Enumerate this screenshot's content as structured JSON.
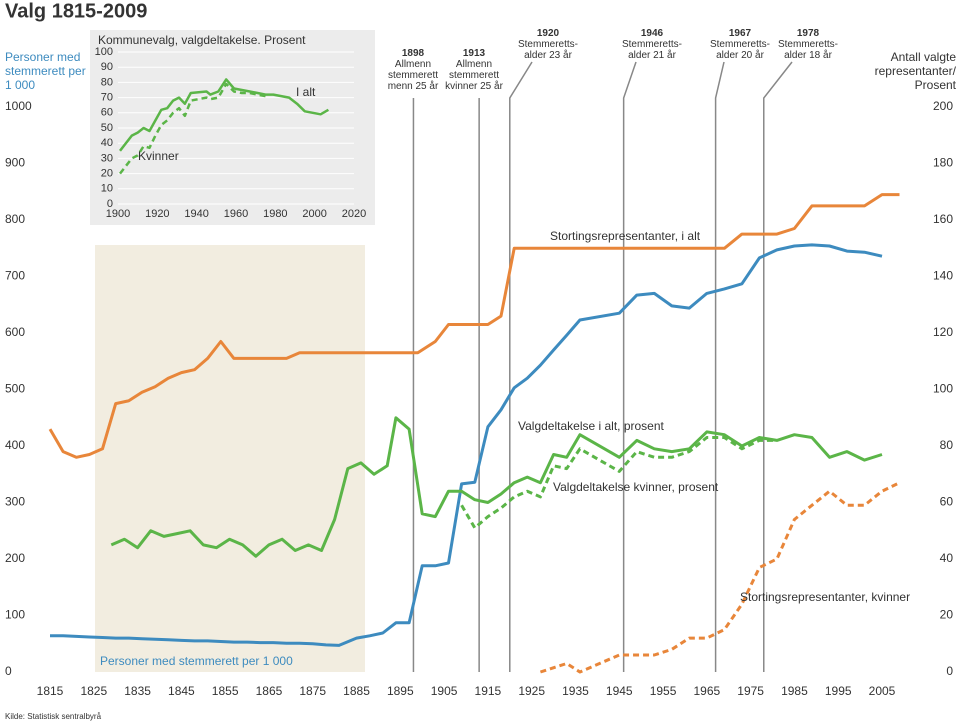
{
  "chart_data": [
    {
      "type": "line",
      "title": "Valg 1815-2009",
      "source": "Kilde: Statistisk sentralbyrå",
      "ylabel": "Personer med stemmerett per 1 000",
      "y2label": "Antall valgte representanter/ Prosent",
      "xlim": [
        1815,
        2009
      ],
      "xticks": [
        1815,
        1825,
        1835,
        1845,
        1855,
        1865,
        1875,
        1885,
        1895,
        1905,
        1915,
        1925,
        1935,
        1945,
        1955,
        1965,
        1975,
        1985,
        1995,
        2005
      ],
      "ylim": [
        0,
        1000
      ],
      "yticks": [
        0,
        100,
        200,
        300,
        400,
        500,
        600,
        700,
        800,
        900,
        1000
      ],
      "y2lim": [
        0,
        200
      ],
      "y2ticks": [
        0,
        20,
        40,
        60,
        80,
        100,
        120,
        140,
        160,
        180,
        200
      ],
      "events": [
        {
          "year": 1898,
          "text": [
            "Allmenn",
            "stemmerett",
            "menn 25 år"
          ]
        },
        {
          "year": 1913,
          "text": [
            "Allmenn",
            "stemmerett",
            "kvinner 25 år"
          ]
        },
        {
          "year": 1920,
          "text": [
            "Stemmeretts-",
            "alder 23 år"
          ]
        },
        {
          "year": 1946,
          "text": [
            "Stemmeretts-",
            "alder 21 år"
          ]
        },
        {
          "year": 1967,
          "text": [
            "Stemmeretts-",
            "alder 20 år"
          ]
        },
        {
          "year": 1978,
          "text": [
            "Stemmeretts-",
            "alder 18 år"
          ]
        }
      ],
      "series": [
        {
          "name": "Stortingsrepresentanter, i alt",
          "color": "#e8863a",
          "axis": "y2",
          "dash": false,
          "x": [
            1815,
            1818,
            1821,
            1824,
            1827,
            1830,
            1833,
            1836,
            1839,
            1842,
            1845,
            1848,
            1851,
            1854,
            1857,
            1860,
            1863,
            1866,
            1869,
            1872,
            1875,
            1878,
            1881,
            1884,
            1887,
            1890,
            1893,
            1896,
            1899,
            1903,
            1906,
            1909,
            1912,
            1915,
            1918,
            1921,
            1924,
            1927,
            1930,
            1933,
            1936,
            1945,
            1949,
            1953,
            1957,
            1961,
            1965,
            1969,
            1973,
            1977,
            1981,
            1985,
            1989,
            1993,
            1997,
            2001,
            2005,
            2009
          ],
          "values": [
            86,
            78,
            76,
            77,
            79,
            95,
            96,
            99,
            101,
            104,
            106,
            107,
            111,
            117,
            111,
            111,
            111,
            111,
            111,
            113,
            113,
            113,
            113,
            113,
            113,
            113,
            113,
            113,
            113,
            117,
            123,
            123,
            123,
            123,
            126,
            150,
            150,
            150,
            150,
            150,
            150,
            150,
            150,
            150,
            150,
            150,
            150,
            150,
            155,
            155,
            155,
            157,
            165,
            165,
            165,
            165,
            169,
            169
          ]
        },
        {
          "name": "Stortingsrepresentanter, kvinner",
          "color": "#e8863a",
          "axis": "y2",
          "dash": true,
          "x": [
            1927,
            1933,
            1936,
            1945,
            1949,
            1953,
            1957,
            1961,
            1965,
            1969,
            1973,
            1977,
            1981,
            1985,
            1989,
            1993,
            1997,
            2001,
            2005,
            2009
          ],
          "values": [
            0,
            3,
            0,
            6,
            6,
            6,
            8,
            12,
            12,
            15,
            24,
            37,
            40,
            54,
            59,
            64,
            59,
            59,
            64,
            67
          ]
        },
        {
          "name": "Personer med stemmerett per 1 000",
          "color": "#3d8bbf",
          "axis": "y",
          "dash": false,
          "x": [
            1815,
            1818,
            1821,
            1824,
            1827,
            1830,
            1833,
            1836,
            1839,
            1842,
            1845,
            1848,
            1851,
            1854,
            1857,
            1860,
            1863,
            1866,
            1869,
            1872,
            1875,
            1878,
            1881,
            1885,
            1888,
            1891,
            1894,
            1897,
            1900,
            1903,
            1906,
            1909,
            1912,
            1915,
            1918,
            1921,
            1924,
            1927,
            1930,
            1933,
            1936,
            1945,
            1949,
            1953,
            1957,
            1961,
            1965,
            1969,
            1973,
            1977,
            1981,
            1985,
            1989,
            1993,
            1997,
            2001,
            2005
          ],
          "values": [
            64,
            64,
            63,
            62,
            61,
            60,
            60,
            59,
            58,
            57,
            56,
            55,
            55,
            54,
            53,
            53,
            52,
            52,
            51,
            51,
            50,
            48,
            47,
            60,
            64,
            69,
            87,
            87,
            188,
            188,
            193,
            333,
            336,
            434,
            464,
            503,
            520,
            543,
            570,
            596,
            623,
            635,
            667,
            670,
            648,
            644,
            670,
            678,
            687,
            733,
            747,
            754,
            756,
            754,
            745,
            743,
            736
          ]
        },
        {
          "name": "Valgdeltakelse i alt, prosent",
          "color": "#5bb548",
          "axis": "y2",
          "dash": false,
          "x": [
            1829,
            1832,
            1835,
            1838,
            1841,
            1844,
            1847,
            1850,
            1853,
            1856,
            1859,
            1862,
            1865,
            1868,
            1871,
            1874,
            1877,
            1880,
            1883,
            1886,
            1889,
            1892,
            1894,
            1897,
            1900,
            1903,
            1906,
            1909,
            1912,
            1915,
            1918,
            1921,
            1924,
            1927,
            1930,
            1933,
            1936,
            1945,
            1949,
            1953,
            1957,
            1961,
            1965,
            1969,
            1973,
            1977,
            1981,
            1985,
            1989,
            1993,
            1997,
            2001,
            2005
          ],
          "values": [
            45,
            47,
            44,
            50,
            48,
            49,
            50,
            45,
            44,
            47,
            45,
            41,
            45,
            47,
            43,
            45,
            43,
            54,
            72,
            74,
            70,
            73,
            90,
            86,
            56,
            55,
            64,
            64,
            61,
            60,
            63,
            67,
            69,
            67,
            77,
            76,
            84,
            76,
            82,
            79,
            78,
            79,
            85,
            84,
            80,
            83,
            82,
            84,
            83,
            76,
            78,
            75,
            77
          ]
        },
        {
          "name": "Valgdeltakelse kvinner, prosent",
          "color": "#5bb548",
          "axis": "y2",
          "dash": true,
          "x": [
            1909,
            1912,
            1915,
            1918,
            1921,
            1924,
            1927,
            1930,
            1933,
            1936,
            1945,
            1949,
            1953,
            1957,
            1961,
            1965,
            1969,
            1973,
            1977,
            1981
          ],
          "values": [
            59,
            51,
            55,
            58,
            62,
            64,
            62,
            73,
            72,
            79,
            71,
            78,
            76,
            76,
            78,
            83,
            83,
            79,
            82,
            82
          ]
        }
      ]
    },
    {
      "type": "line",
      "title": "Kommunevalg, valgdeltakelse. Prosent",
      "xlim": [
        1900,
        2020
      ],
      "xticks": [
        1900,
        1920,
        1940,
        1960,
        1980,
        2000,
        2020
      ],
      "ylim": [
        0,
        100
      ],
      "yticks": [
        0,
        10,
        20,
        30,
        40,
        50,
        60,
        70,
        80,
        90,
        100
      ],
      "grid": true,
      "series": [
        {
          "name": "I alt",
          "color": "#5bb548",
          "dash": false,
          "x": [
            1901,
            1907,
            1910,
            1913,
            1916,
            1919,
            1922,
            1925,
            1928,
            1931,
            1934,
            1937,
            1945,
            1947,
            1951,
            1955,
            1959,
            1963,
            1967,
            1971,
            1975,
            1979,
            1983,
            1987,
            1991,
            1995,
            1999,
            2003,
            2007
          ],
          "values": [
            35,
            45,
            47,
            50,
            48,
            55,
            62,
            63,
            68,
            70,
            66,
            73,
            74,
            72,
            74,
            82,
            76,
            75,
            74,
            73,
            72,
            72,
            71,
            70,
            66,
            61,
            60,
            59,
            62
          ]
        },
        {
          "name": "Kvinner",
          "color": "#5bb548",
          "dash": true,
          "x": [
            1901,
            1907,
            1910,
            1913,
            1916,
            1919,
            1922,
            1925,
            1928,
            1931,
            1934,
            1937,
            1945,
            1947,
            1951,
            1955,
            1959,
            1963,
            1967,
            1971,
            1975
          ],
          "values": [
            20,
            30,
            32,
            38,
            37,
            45,
            52,
            55,
            60,
            63,
            58,
            68,
            70,
            69,
            70,
            79,
            74,
            73,
            73,
            72,
            71
          ]
        }
      ]
    }
  ]
}
